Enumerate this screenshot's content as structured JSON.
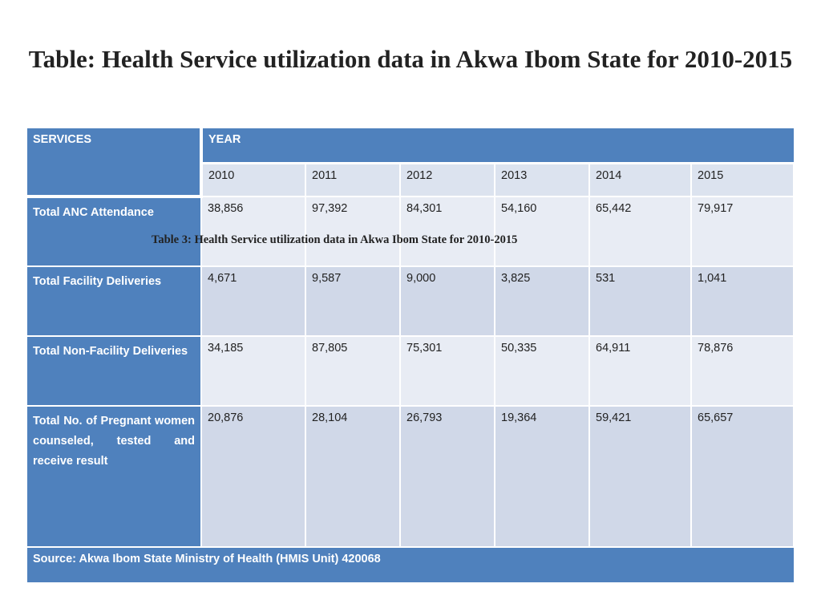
{
  "title": "Table: Health Service utilization data in Akwa Ibom State for 2010-2015",
  "header": {
    "services": "SERVICES",
    "year": "YEAR"
  },
  "years": [
    "2010",
    "2011",
    "2012",
    "2013",
    "2014",
    "2015"
  ],
  "rows": [
    {
      "label": "Total ANC Attendance",
      "values": [
        "38,856",
        "97,392",
        "84,301",
        "54,160",
        "65,442",
        "79,917"
      ]
    },
    {
      "label": "Total Facility Deliveries",
      "values": [
        "4,671",
        "9,587",
        "9,000",
        "3,825",
        "531",
        "1,041"
      ]
    },
    {
      "label": "Total Non-Facility Deliveries",
      "values": [
        "34,185",
        "87,805",
        "75,301",
        "50,335",
        "64,911",
        "78,876"
      ]
    },
    {
      "label": "Total No. of Pregnant women counseled, tested and receive result",
      "values": [
        "20,876",
        "28,104",
        "26,793",
        "19,364",
        "59,421",
        "65,657"
      ]
    }
  ],
  "caption": "Table 3: Health Service utilization data in Akwa Ibom State for 2010-2015",
  "source": "Source: Akwa Ibom State Ministry of Health (HMIS Unit) 420068"
}
